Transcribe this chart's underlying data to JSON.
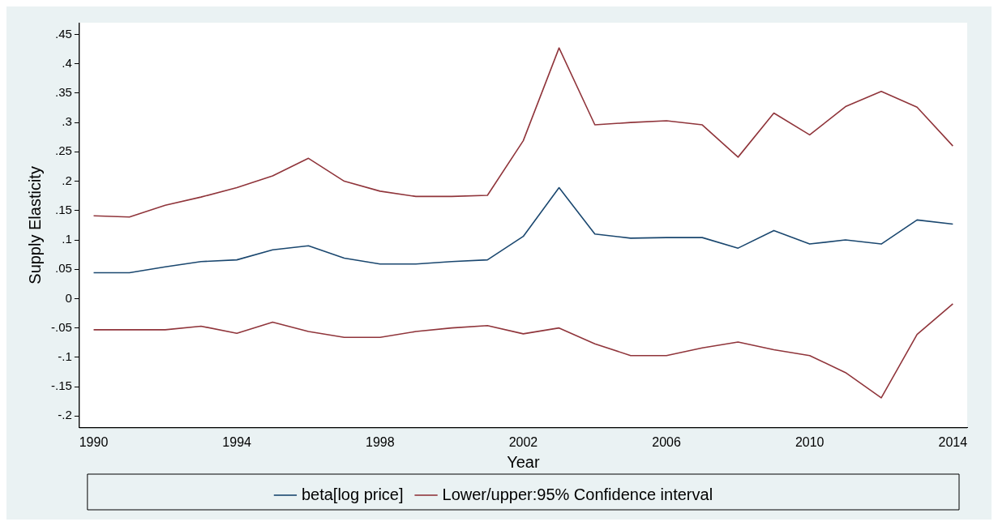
{
  "chart_data": {
    "type": "line",
    "xlabel": "Year",
    "ylabel": "Supply Elasticity",
    "x": [
      1990,
      1991,
      1992,
      1993,
      1994,
      1995,
      1996,
      1997,
      1998,
      1999,
      2000,
      2001,
      2002,
      2003,
      2004,
      2005,
      2006,
      2007,
      2008,
      2009,
      2010,
      2011,
      2012,
      2013,
      2014
    ],
    "series": [
      {
        "name": "beta[log price]",
        "color": "#1a476f",
        "values": [
          0.044,
          0.044,
          0.054,
          0.063,
          0.066,
          0.083,
          0.09,
          0.069,
          0.059,
          0.059,
          0.063,
          0.066,
          0.106,
          0.189,
          0.11,
          0.103,
          0.104,
          0.104,
          0.086,
          0.116,
          0.093,
          0.1,
          0.093,
          0.134,
          0.127
        ]
      },
      {
        "name": "Lower/upper:95% Confidence interval",
        "color": "#90353b",
        "values": [
          0.141,
          0.139,
          0.159,
          0.173,
          0.189,
          0.209,
          0.239,
          0.2,
          0.183,
          0.174,
          0.174,
          0.176,
          0.269,
          0.427,
          0.296,
          0.3,
          0.303,
          0.296,
          0.241,
          0.316,
          0.279,
          0.327,
          0.353,
          0.326,
          0.26
        ]
      },
      {
        "color": "#90353b",
        "values": [
          -0.053,
          -0.053,
          -0.053,
          -0.047,
          -0.059,
          -0.04,
          -0.056,
          -0.066,
          -0.066,
          -0.056,
          -0.05,
          -0.046,
          -0.06,
          -0.05,
          -0.077,
          -0.097,
          -0.097,
          -0.084,
          -0.074,
          -0.087,
          -0.097,
          -0.126,
          -0.169,
          -0.061,
          -0.009
        ]
      }
    ],
    "xlim": [
      1989.6,
      2014.4
    ],
    "xticks": [
      1990,
      1994,
      1998,
      2002,
      2006,
      2010,
      2014
    ],
    "ylim": [
      -0.22,
      0.47
    ],
    "yticks": [
      {
        "value": -0.2,
        "label": "-.2"
      },
      {
        "value": -0.15,
        "label": "-.15"
      },
      {
        "value": -0.1,
        "label": "-.1"
      },
      {
        "value": -0.05,
        "label": "-.05"
      },
      {
        "value": 0,
        "label": "0"
      },
      {
        "value": 0.05,
        "label": ".05"
      },
      {
        "value": 0.1,
        "label": ".1"
      },
      {
        "value": 0.15,
        "label": ".15"
      },
      {
        "value": 0.2,
        "label": ".2"
      },
      {
        "value": 0.25,
        "label": ".25"
      },
      {
        "value": 0.3,
        "label": ".3"
      },
      {
        "value": 0.35,
        "label": ".35"
      },
      {
        "value": 0.4,
        "label": ".4"
      },
      {
        "value": 0.45,
        "label": ".45"
      }
    ],
    "grid": false,
    "legend": "bottom",
    "marker": "none",
    "line_style": "solid"
  }
}
